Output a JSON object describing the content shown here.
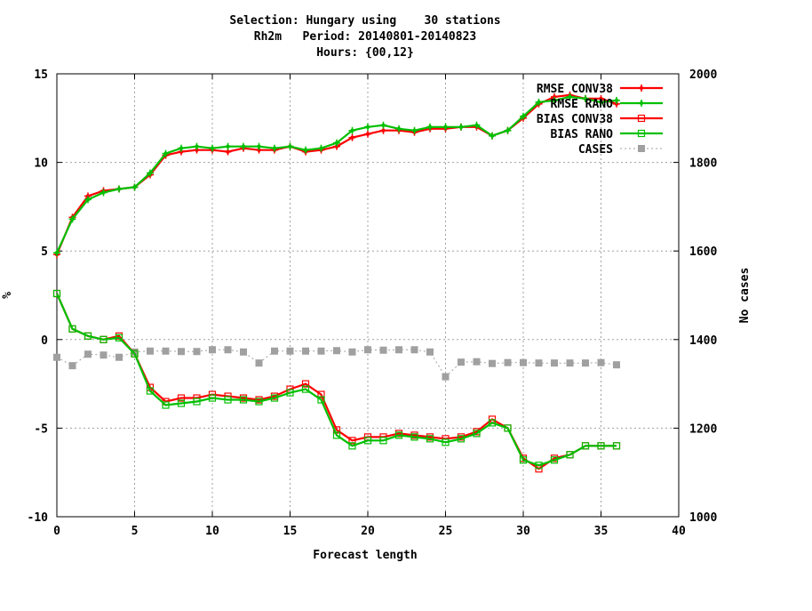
{
  "chart_data": {
    "type": "line",
    "title_lines": [
      "Selection: Hungary using    30 stations",
      "Rh2m   Period: 20140801-20140823",
      "Hours: {00,12}"
    ],
    "xlabel": "Forecast length",
    "ylabel": "%",
    "y2label": "No cases",
    "xlim": [
      0,
      40
    ],
    "ylim": [
      -10,
      15
    ],
    "y2lim": [
      1000,
      2000
    ],
    "xticks": [
      "0",
      "5",
      "10",
      "15",
      "20",
      "25",
      "30",
      "35",
      "40"
    ],
    "yticks": [
      "-10",
      "-5",
      "0",
      "5",
      "10",
      "15"
    ],
    "y2ticks": [
      "1000",
      "1200",
      "1400",
      "1600",
      "1800",
      "2000"
    ],
    "grid": true,
    "legend_position": "top-right",
    "x": [
      0,
      1,
      2,
      3,
      4,
      5,
      6,
      7,
      8,
      9,
      10,
      11,
      12,
      13,
      14,
      15,
      16,
      17,
      18,
      19,
      20,
      21,
      22,
      23,
      24,
      25,
      26,
      27,
      28,
      29,
      30,
      31,
      32,
      33,
      34,
      35,
      36
    ],
    "series": [
      {
        "name": "RMSE CONV38",
        "color": "#ff0000",
        "marker": "plus-dot",
        "axis": "y1",
        "values": [
          4.8,
          6.9,
          8.1,
          8.4,
          8.5,
          8.6,
          9.3,
          10.4,
          10.6,
          10.7,
          10.7,
          10.6,
          10.8,
          10.7,
          10.7,
          10.9,
          10.6,
          10.7,
          10.9,
          11.4,
          11.6,
          11.8,
          11.8,
          11.7,
          11.9,
          11.9,
          12.0,
          12.0,
          11.5,
          11.8,
          12.5,
          13.3,
          13.7,
          13.8,
          13.6,
          13.6,
          13.3
        ]
      },
      {
        "name": "RMSE RANO",
        "color": "#00c000",
        "marker": "plus-dot",
        "axis": "y1",
        "values": [
          4.9,
          6.8,
          7.9,
          8.3,
          8.5,
          8.6,
          9.4,
          10.5,
          10.8,
          10.9,
          10.8,
          10.9,
          10.9,
          10.9,
          10.8,
          10.9,
          10.7,
          10.8,
          11.1,
          11.8,
          12.0,
          12.1,
          11.9,
          11.8,
          12.0,
          12.0,
          12.0,
          12.1,
          11.5,
          11.8,
          12.6,
          13.4,
          13.5,
          13.7,
          13.6,
          13.4,
          13.5
        ]
      },
      {
        "name": "BIAS CONV38",
        "color": "#ff0000",
        "marker": "square",
        "axis": "y1",
        "values": [
          2.6,
          0.6,
          0.2,
          0.0,
          0.2,
          -0.8,
          -2.7,
          -3.5,
          -3.3,
          -3.3,
          -3.1,
          -3.2,
          -3.3,
          -3.4,
          -3.2,
          -2.8,
          -2.5,
          -3.1,
          -5.1,
          -5.7,
          -5.5,
          -5.5,
          -5.3,
          -5.4,
          -5.5,
          -5.6,
          -5.5,
          -5.2,
          -4.5,
          -5.0,
          -6.7,
          -7.3,
          -6.7,
          -6.5,
          -6.0,
          -6.0,
          -6.0
        ]
      },
      {
        "name": "BIAS RANO",
        "color": "#00c000",
        "marker": "square",
        "axis": "y1",
        "values": [
          2.6,
          0.6,
          0.2,
          0.0,
          0.1,
          -0.8,
          -2.9,
          -3.7,
          -3.6,
          -3.5,
          -3.3,
          -3.4,
          -3.4,
          -3.5,
          -3.3,
          -3.0,
          -2.8,
          -3.4,
          -5.4,
          -6.0,
          -5.7,
          -5.7,
          -5.4,
          -5.5,
          -5.6,
          -5.8,
          -5.6,
          -5.3,
          -4.7,
          -5.0,
          -6.8,
          -7.1,
          -6.8,
          -6.5,
          -6.0,
          -6.0,
          -6.0
        ]
      },
      {
        "name": "CASES",
        "color": "#a0a0a0",
        "marker": "filled-square",
        "axis": "y2",
        "values": [
          1360,
          1341,
          1367,
          1365,
          1360,
          1372,
          1374,
          1374,
          1373,
          1373,
          1377,
          1377,
          1372,
          1347,
          1374,
          1374,
          1374,
          1374,
          1375,
          1372,
          1377,
          1376,
          1377,
          1377,
          1372,
          1316,
          1349,
          1350,
          1346,
          1348,
          1348,
          1347,
          1347,
          1347,
          1347,
          1348,
          1343
        ]
      }
    ]
  }
}
